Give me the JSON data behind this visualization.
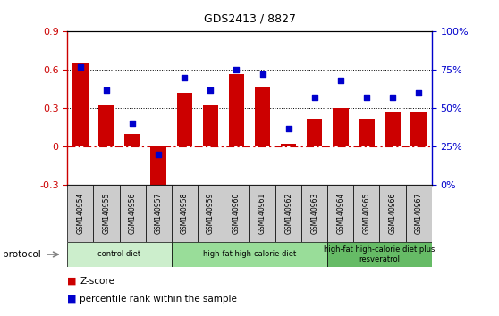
{
  "title": "GDS2413 / 8827",
  "samples": [
    "GSM140954",
    "GSM140955",
    "GSM140956",
    "GSM140957",
    "GSM140958",
    "GSM140959",
    "GSM140960",
    "GSM140961",
    "GSM140962",
    "GSM140963",
    "GSM140964",
    "GSM140965",
    "GSM140966",
    "GSM140967"
  ],
  "zscore": [
    0.65,
    0.32,
    0.1,
    -0.42,
    0.42,
    0.32,
    0.57,
    0.47,
    0.02,
    0.22,
    0.3,
    0.22,
    0.27,
    0.27
  ],
  "percentile": [
    77,
    62,
    40,
    20,
    70,
    62,
    75,
    72,
    37,
    57,
    68,
    57,
    57,
    60
  ],
  "bar_color": "#cc0000",
  "dot_color": "#0000cc",
  "ylim_left": [
    -0.3,
    0.9
  ],
  "ylim_right": [
    0,
    100
  ],
  "yticks_left": [
    -0.3,
    0.0,
    0.3,
    0.6,
    0.9
  ],
  "ytick_labels_left": [
    "-0.3",
    "0",
    "0.3",
    "0.6",
    "0.9"
  ],
  "yticks_right": [
    0,
    25,
    50,
    75,
    100
  ],
  "ytick_labels_right": [
    "0%",
    "25%",
    "50%",
    "75%",
    "100%"
  ],
  "hline_values": [
    0.3,
    0.6
  ],
  "zero_line_color": "#cc0000",
  "groups": [
    {
      "label": "control diet",
      "start": 0,
      "end": 4,
      "color": "#cceecc"
    },
    {
      "label": "high-fat high-calorie diet",
      "start": 4,
      "end": 10,
      "color": "#99dd99"
    },
    {
      "label": "high-fat high-calorie diet plus\nresveratrol",
      "start": 10,
      "end": 14,
      "color": "#66bb66"
    }
  ],
  "group_row_label": "protocol",
  "legend_zscore": "Z-score",
  "legend_percentile": "percentile rank within the sample",
  "background_color": "#ffffff",
  "tick_bg_color": "#cccccc"
}
